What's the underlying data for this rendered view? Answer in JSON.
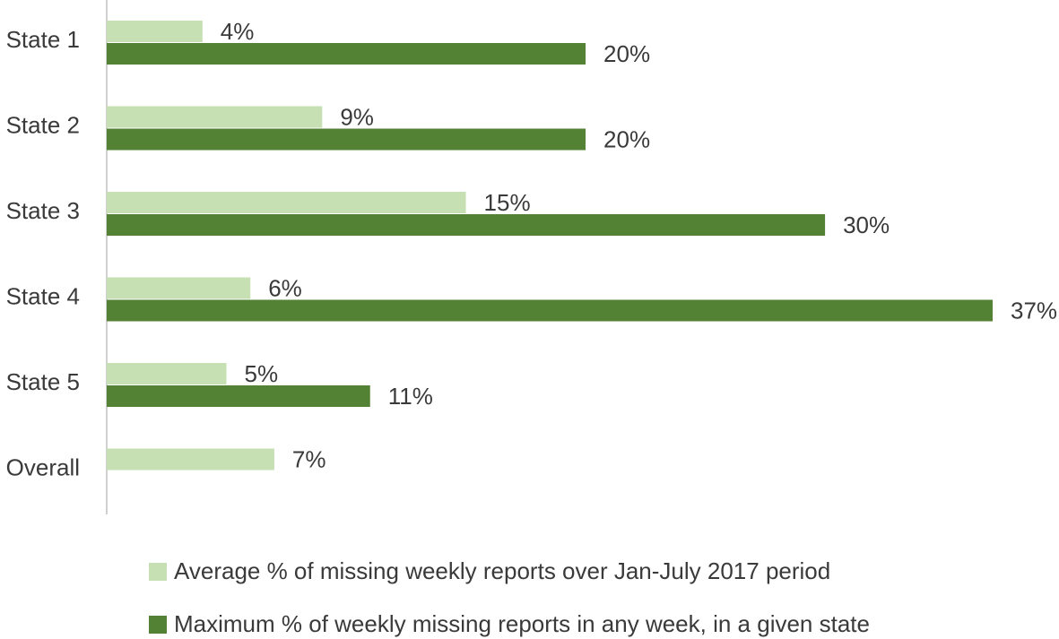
{
  "chart_data": {
    "type": "bar",
    "orientation": "horizontal",
    "categories": [
      "State 1",
      "State 2",
      "State 3",
      "State 4",
      "State 5",
      "Overall"
    ],
    "series": [
      {
        "name": "Average % of missing weekly reports over Jan-July 2017 period",
        "values": [
          4,
          9,
          15,
          6,
          5,
          7
        ],
        "labels": [
          "4%",
          "9%",
          "15%",
          "6%",
          "5%",
          "7%"
        ],
        "color": "#c6e0b4"
      },
      {
        "name": "Maximum % of weekly missing reports in any week, in a given state",
        "values": [
          20,
          20,
          30,
          37,
          11,
          null
        ],
        "labels": [
          "20%",
          "20%",
          "30%",
          "37%",
          "11%",
          null
        ],
        "color": "#548235"
      }
    ],
    "xlim": [
      0,
      37
    ],
    "xlabel": "",
    "ylabel": "",
    "grid": false,
    "legend_position": "bottom"
  }
}
